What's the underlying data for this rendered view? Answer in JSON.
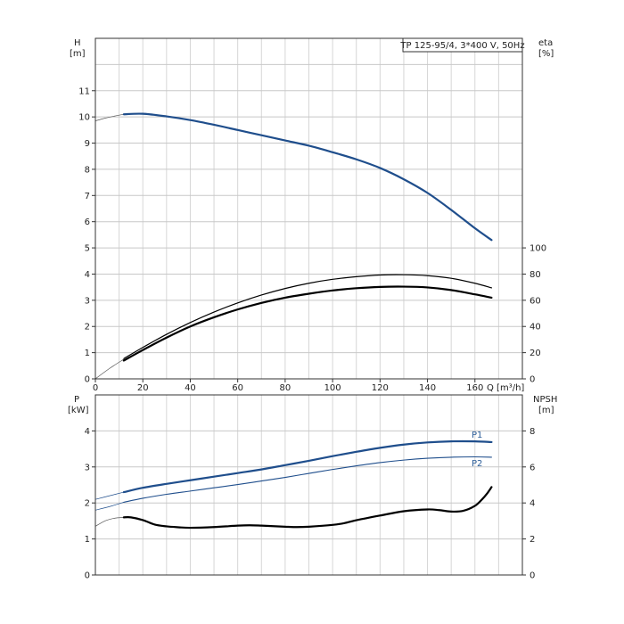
{
  "chart_data": [
    {
      "type": "line",
      "title": "TP 125-95/4, 3*400 V, 50Hz",
      "xlabel": "Q [m³/h]",
      "xlim": [
        0,
        180
      ],
      "x_ticks": [
        "0",
        "20",
        "40",
        "60",
        "80",
        "100",
        "120",
        "140",
        "160"
      ],
      "ylabel_left": [
        "H",
        "[m]"
      ],
      "ylim_left": [
        0,
        13
      ],
      "y_ticks_left": [
        "0",
        "1",
        "2",
        "3",
        "4",
        "5",
        "6",
        "7",
        "8",
        "9",
        "10",
        "11"
      ],
      "ylabel_right": [
        "eta",
        "[%]"
      ],
      "ylim_right": [
        0,
        100
      ],
      "y_ticks_right": [
        "0",
        "20",
        "40",
        "60",
        "80",
        "100"
      ],
      "grid": true,
      "colors": {
        "head": "#1f4e8c",
        "eta": "#000000",
        "frame": "#333333",
        "grid": "#d0d0d0"
      },
      "series": [
        {
          "key": "head",
          "axis": "left",
          "x": [
            12,
            20,
            30,
            40,
            50,
            60,
            70,
            80,
            90,
            100,
            110,
            120,
            130,
            140,
            150,
            160,
            167
          ],
          "y": [
            10.1,
            10.12,
            10.02,
            9.88,
            9.7,
            9.5,
            9.3,
            9.1,
            8.9,
            8.65,
            8.38,
            8.05,
            7.62,
            7.1,
            6.45,
            5.75,
            5.3
          ]
        },
        {
          "key": "head_ext",
          "axis": "left",
          "x": [
            0,
            4,
            8,
            12
          ],
          "y": [
            9.85,
            9.95,
            10.03,
            10.1
          ]
        },
        {
          "key": "eta_upper",
          "axis": "right",
          "x": [
            12,
            20,
            30,
            40,
            50,
            60,
            70,
            80,
            90,
            100,
            110,
            120,
            130,
            140,
            150,
            160,
            167
          ],
          "y": [
            15.5,
            24,
            34,
            43,
            51,
            58,
            64,
            69,
            73,
            76,
            78,
            79.3,
            79.5,
            78.8,
            76.8,
            73,
            69.5
          ]
        },
        {
          "key": "eta_lower",
          "axis": "right",
          "x": [
            12,
            20,
            30,
            40,
            50,
            60,
            70,
            80,
            90,
            100,
            110,
            120,
            130,
            140,
            150,
            160,
            167
          ],
          "y": [
            14,
            22,
            31.5,
            40,
            47,
            53,
            58,
            62,
            65,
            67.5,
            69.2,
            70.2,
            70.4,
            69.8,
            67.8,
            64.5,
            62
          ]
        },
        {
          "key": "eta_ext",
          "axis": "right",
          "x": [
            0,
            6,
            12
          ],
          "y": [
            0,
            8,
            15
          ]
        }
      ]
    },
    {
      "type": "line",
      "ylabel_left": [
        "P",
        "[kW]"
      ],
      "ylim_left": [
        0,
        5
      ],
      "y_ticks_left": [
        "0",
        "1",
        "2",
        "3",
        "4"
      ],
      "ylabel_right": [
        "NPSH",
        "[m]"
      ],
      "ylim_right": [
        0,
        10
      ],
      "y_ticks_right": [
        "0",
        "2",
        "4",
        "6",
        "8"
      ],
      "xlim": [
        0,
        180
      ],
      "colors": {
        "P1": "#1f4e8c",
        "P2": "#1f4e8c",
        "npsh": "#000000",
        "label": "#2e5f99"
      },
      "series": [
        {
          "name": "P1",
          "axis": "left",
          "x": [
            12,
            20,
            30,
            40,
            50,
            60,
            70,
            80,
            90,
            100,
            110,
            120,
            130,
            140,
            150,
            160,
            167
          ],
          "y": [
            2.3,
            2.42,
            2.53,
            2.63,
            2.73,
            2.83,
            2.93,
            3.05,
            3.17,
            3.3,
            3.42,
            3.53,
            3.62,
            3.68,
            3.71,
            3.71,
            3.69
          ]
        },
        {
          "name": "P2",
          "axis": "left",
          "x": [
            12,
            20,
            30,
            40,
            50,
            60,
            70,
            80,
            90,
            100,
            110,
            120,
            130,
            140,
            150,
            160,
            167
          ],
          "y": [
            2.02,
            2.13,
            2.24,
            2.33,
            2.42,
            2.51,
            2.61,
            2.71,
            2.82,
            2.93,
            3.03,
            3.12,
            3.19,
            3.24,
            3.27,
            3.28,
            3.27
          ]
        },
        {
          "key": "P1_ext",
          "axis": "left",
          "x": [
            0,
            6,
            12
          ],
          "y": [
            2.1,
            2.2,
            2.3
          ]
        },
        {
          "key": "P2_ext",
          "axis": "left",
          "x": [
            0,
            6,
            12
          ],
          "y": [
            1.8,
            1.9,
            2.02
          ]
        },
        {
          "key": "npsh",
          "axis": "right",
          "x": [
            12,
            15,
            20,
            25,
            30,
            35,
            40,
            50,
            60,
            65,
            70,
            80,
            85,
            90,
            100,
            105,
            110,
            120,
            130,
            140,
            145,
            150,
            155,
            160,
            163,
            165,
            167
          ],
          "y": [
            3.2,
            3.2,
            3.05,
            2.8,
            2.7,
            2.65,
            2.62,
            2.66,
            2.74,
            2.76,
            2.74,
            2.68,
            2.66,
            2.68,
            2.78,
            2.88,
            3.04,
            3.3,
            3.54,
            3.64,
            3.6,
            3.52,
            3.56,
            3.84,
            4.2,
            4.5,
            4.88
          ]
        },
        {
          "key": "npsh_ext",
          "axis": "right",
          "x": [
            0,
            4,
            8,
            12
          ],
          "y": [
            2.7,
            3.0,
            3.15,
            3.2
          ]
        }
      ]
    }
  ]
}
